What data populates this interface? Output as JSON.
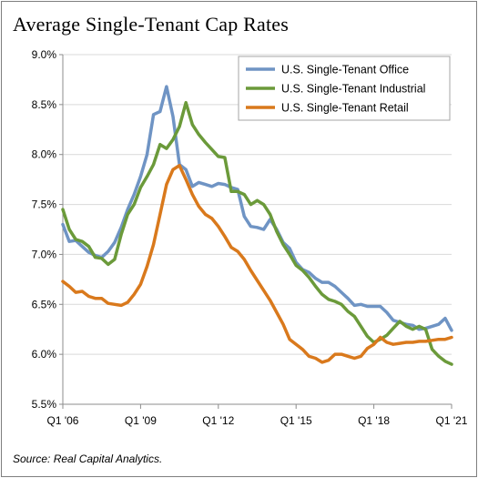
{
  "title": "Average Single-Tenant Cap Rates",
  "source": "Source: Real Capital Analytics.",
  "colors": {
    "office": "#6f94c4",
    "industrial": "#6b9a3a",
    "retail": "#d9791c",
    "grid": "#d9d9d9",
    "axis": "#8c8c8c"
  },
  "chart_data": {
    "type": "line",
    "title": "Average Single-Tenant Cap Rates",
    "xlabel": "",
    "ylabel": "",
    "x_range": [
      2006.0,
      2021.0
    ],
    "ylim": [
      5.5,
      9.0
    ],
    "y_ticks": [
      5.5,
      6.0,
      6.5,
      7.0,
      7.5,
      8.0,
      8.5,
      9.0
    ],
    "y_tick_labels": [
      "5.5%",
      "6.0%",
      "6.5%",
      "7.0%",
      "7.5%",
      "8.0%",
      "8.5%",
      "9.0%"
    ],
    "x_ticks": [
      2006,
      2009,
      2012,
      2015,
      2018,
      2021
    ],
    "x_tick_labels": [
      "Q1 '06",
      "Q1 '09",
      "Q1 '12",
      "Q1 '15",
      "Q1 '18",
      "Q1 '21"
    ],
    "grid": "horizontal",
    "legend": "top-right",
    "series": [
      {
        "name": "U.S. Single-Tenant Office",
        "x": [
          2006.0,
          2006.25,
          2006.5,
          2006.75,
          2007.0,
          2007.25,
          2007.5,
          2007.75,
          2008.0,
          2008.25,
          2008.5,
          2008.75,
          2009.0,
          2009.25,
          2009.5,
          2009.75,
          2010.0,
          2010.25,
          2010.5,
          2010.75,
          2011.0,
          2011.25,
          2011.5,
          2011.75,
          2012.0,
          2012.25,
          2012.5,
          2012.75,
          2013.0,
          2013.25,
          2013.5,
          2013.75,
          2014.0,
          2014.25,
          2014.5,
          2014.75,
          2015.0,
          2015.25,
          2015.5,
          2015.75,
          2016.0,
          2016.25,
          2016.5,
          2016.75,
          2017.0,
          2017.25,
          2017.5,
          2017.75,
          2018.0,
          2018.25,
          2018.5,
          2018.75,
          2019.0,
          2019.25,
          2019.5,
          2019.75,
          2020.0,
          2020.25,
          2020.5,
          2020.75,
          2021.0
        ],
        "y": [
          7.3,
          7.13,
          7.14,
          7.08,
          7.02,
          6.99,
          6.97,
          7.03,
          7.12,
          7.27,
          7.45,
          7.6,
          7.78,
          8.0,
          8.4,
          8.43,
          8.68,
          8.38,
          7.9,
          7.85,
          7.68,
          7.72,
          7.7,
          7.68,
          7.71,
          7.7,
          7.67,
          7.65,
          7.38,
          7.28,
          7.27,
          7.25,
          7.35,
          7.25,
          7.12,
          7.06,
          6.92,
          6.85,
          6.82,
          6.76,
          6.72,
          6.72,
          6.68,
          6.62,
          6.56,
          6.49,
          6.5,
          6.48,
          6.48,
          6.48,
          6.42,
          6.34,
          6.32,
          6.3,
          6.29,
          6.25,
          6.26,
          6.28,
          6.3,
          6.36,
          6.24
        ]
      },
      {
        "name": "U.S. Single-Tenant Industrial",
        "x": [
          2006.0,
          2006.25,
          2006.5,
          2006.75,
          2007.0,
          2007.25,
          2007.5,
          2007.75,
          2008.0,
          2008.25,
          2008.5,
          2008.75,
          2009.0,
          2009.25,
          2009.5,
          2009.75,
          2010.0,
          2010.25,
          2010.5,
          2010.75,
          2011.0,
          2011.25,
          2011.5,
          2011.75,
          2012.0,
          2012.25,
          2012.5,
          2012.75,
          2013.0,
          2013.25,
          2013.5,
          2013.75,
          2014.0,
          2014.25,
          2014.5,
          2014.75,
          2015.0,
          2015.25,
          2015.5,
          2015.75,
          2016.0,
          2016.25,
          2016.5,
          2016.75,
          2017.0,
          2017.25,
          2017.5,
          2017.75,
          2018.0,
          2018.25,
          2018.5,
          2018.75,
          2019.0,
          2019.25,
          2019.5,
          2019.75,
          2020.0,
          2020.25,
          2020.5,
          2020.75,
          2021.0
        ],
        "y": [
          7.45,
          7.25,
          7.15,
          7.13,
          7.08,
          6.97,
          6.96,
          6.9,
          6.95,
          7.2,
          7.4,
          7.5,
          7.67,
          7.78,
          7.9,
          8.1,
          8.06,
          8.15,
          8.28,
          8.52,
          8.3,
          8.2,
          8.12,
          8.05,
          7.98,
          7.97,
          7.63,
          7.63,
          7.6,
          7.5,
          7.54,
          7.5,
          7.4,
          7.23,
          7.1,
          7.0,
          6.89,
          6.84,
          6.77,
          6.68,
          6.6,
          6.55,
          6.53,
          6.5,
          6.43,
          6.38,
          6.28,
          6.18,
          6.12,
          6.15,
          6.19,
          6.26,
          6.33,
          6.28,
          6.25,
          6.28,
          6.25,
          6.05,
          5.98,
          5.93,
          5.9
        ]
      },
      {
        "name": "U.S. Single-Tenant Retail",
        "x": [
          2006.0,
          2006.25,
          2006.5,
          2006.75,
          2007.0,
          2007.25,
          2007.5,
          2007.75,
          2008.0,
          2008.25,
          2008.5,
          2008.75,
          2009.0,
          2009.25,
          2009.5,
          2009.75,
          2010.0,
          2010.25,
          2010.5,
          2010.75,
          2011.0,
          2011.25,
          2011.5,
          2011.75,
          2012.0,
          2012.25,
          2012.5,
          2012.75,
          2013.0,
          2013.25,
          2013.5,
          2013.75,
          2014.0,
          2014.25,
          2014.5,
          2014.75,
          2015.0,
          2015.25,
          2015.5,
          2015.75,
          2016.0,
          2016.25,
          2016.5,
          2016.75,
          2017.0,
          2017.25,
          2017.5,
          2017.75,
          2018.0,
          2018.25,
          2018.5,
          2018.75,
          2019.0,
          2019.25,
          2019.5,
          2019.75,
          2020.0,
          2020.25,
          2020.5,
          2020.75,
          2021.0
        ],
        "y": [
          6.73,
          6.68,
          6.62,
          6.63,
          6.58,
          6.56,
          6.56,
          6.51,
          6.5,
          6.49,
          6.52,
          6.6,
          6.7,
          6.88,
          7.1,
          7.4,
          7.7,
          7.85,
          7.89,
          7.75,
          7.6,
          7.48,
          7.4,
          7.36,
          7.28,
          7.18,
          7.07,
          7.03,
          6.95,
          6.84,
          6.74,
          6.64,
          6.54,
          6.42,
          6.3,
          6.15,
          6.1,
          6.05,
          5.98,
          5.96,
          5.92,
          5.94,
          6.0,
          6.0,
          5.98,
          5.96,
          5.98,
          6.06,
          6.1,
          6.17,
          6.12,
          6.1,
          6.11,
          6.12,
          6.12,
          6.13,
          6.13,
          6.14,
          6.15,
          6.15,
          6.17
        ]
      }
    ]
  }
}
